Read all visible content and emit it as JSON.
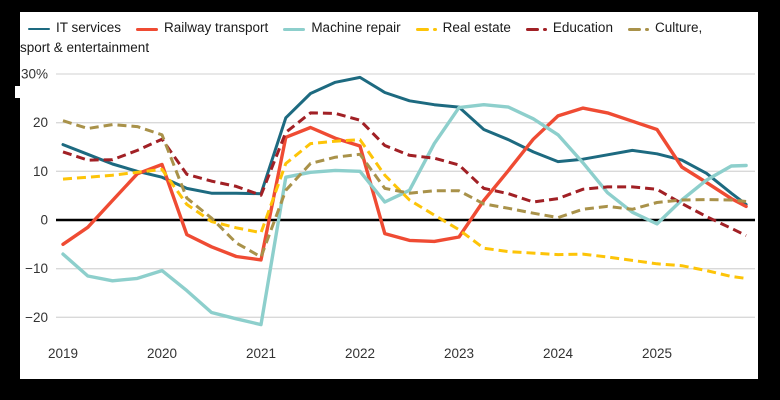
{
  "window": {
    "background": "#000000",
    "panel_background": "#ffffff"
  },
  "colors": {
    "grid": "#d9d9d9",
    "zero_line": "#000000",
    "axis_text": "#333333",
    "legend_text": "#1a1a1a"
  },
  "chart_data": {
    "type": "line",
    "title": "",
    "xlabel": "",
    "ylabel": "",
    "grid": true,
    "zero_line": true,
    "legend_position": "top",
    "x": [
      2019,
      2019.25,
      2019.5,
      2019.75,
      2020,
      2020.25,
      2020.5,
      2020.75,
      2021,
      2021.25,
      2021.5,
      2021.75,
      2022,
      2022.25,
      2022.5,
      2022.75,
      2023,
      2023.25,
      2023.5,
      2023.75,
      2024,
      2024.25,
      2024.5,
      2024.75,
      2025,
      2025.25,
      2025.5,
      2025.75,
      2025.9
    ],
    "x_axis": {
      "tick_values": [
        2019,
        2020,
        2021,
        2022,
        2023,
        2024,
        2025
      ],
      "tick_labels": [
        "2019",
        "2020",
        "2021",
        "2022",
        "2023",
        "2024",
        "2025"
      ]
    },
    "y_axis": {
      "tick_values": [
        30,
        20,
        10,
        0,
        -10,
        -20
      ],
      "tick_labels": [
        "30%",
        "20",
        "10",
        "0",
        "−10",
        "−20"
      ],
      "range": [
        -25,
        33
      ]
    },
    "series": [
      {
        "name": "IT services",
        "color": "#1d6a80",
        "dashed": false,
        "stroke_width": 3,
        "values": [
          15.5,
          13.5,
          11.5,
          10,
          8.8,
          6.5,
          5.5,
          5.5,
          5.4,
          21,
          26,
          28.3,
          29.3,
          26.2,
          24.5,
          23.7,
          23.2,
          18.6,
          16.5,
          14,
          12,
          12.5,
          13.4,
          14.3,
          13.6,
          12.3,
          9.6,
          5.5,
          3.2
        ]
      },
      {
        "name": "Railway transport",
        "color": "#ef4b33",
        "dashed": false,
        "stroke_width": 3.4,
        "values": [
          -5,
          -1.5,
          4,
          9.5,
          11.4,
          -3,
          -5.5,
          -7.5,
          -8.2,
          17,
          19,
          16.8,
          15.2,
          -2.8,
          -4.2,
          -4.4,
          -3.5,
          4,
          10.2,
          16.6,
          21.4,
          23,
          22,
          20.3,
          18.6,
          10.9,
          7.7,
          4.4,
          2.8
        ]
      },
      {
        "name": "Machine repair",
        "color": "#8dcfcc",
        "dashed": false,
        "stroke_width": 3.4,
        "values": [
          -7,
          -11.5,
          -12.5,
          -12,
          -10.4,
          -14.5,
          -19,
          -20.3,
          -21.5,
          8.8,
          9.8,
          10.2,
          10,
          3.7,
          6.1,
          15.7,
          23.1,
          23.7,
          23.2,
          20.8,
          17.5,
          11.8,
          5.6,
          1.6,
          -0.8,
          4.1,
          8.2,
          11.1,
          11.2
        ]
      },
      {
        "name": "Real estate",
        "color": "#fdc408",
        "dashed": true,
        "stroke_width": 3,
        "values": [
          8.4,
          8.8,
          9.2,
          9.8,
          10.4,
          3.2,
          -0.3,
          -1.6,
          -2.6,
          11.6,
          15.7,
          16.2,
          16.5,
          9.2,
          4.1,
          1.0,
          -2.0,
          -5.8,
          -6.5,
          -6.8,
          -7.1,
          -7.0,
          -7.6,
          -8.3,
          -9.0,
          -9.4,
          -10.4,
          -11.6,
          -12.0
        ]
      },
      {
        "name": "Education",
        "color": "#a12025",
        "dashed": true,
        "stroke_width": 3,
        "values": [
          14,
          12.3,
          12.4,
          14.3,
          16.6,
          9.4,
          8,
          6.9,
          5.1,
          18,
          22,
          21.9,
          20.5,
          15.3,
          13.3,
          12.7,
          11.3,
          6.5,
          5.4,
          3.7,
          4.4,
          6.3,
          6.8,
          6.8,
          6.3,
          3.4,
          0.7,
          -1.7,
          -3.2
        ]
      },
      {
        "name": "Culture, sport & entertainment",
        "color": "#a9924a",
        "dashed": true,
        "stroke_width": 3,
        "values": [
          20.4,
          18.8,
          19.6,
          19.2,
          17.5,
          4.5,
          0.4,
          -4.7,
          -7.6,
          6.1,
          11.6,
          12.9,
          13.5,
          6.5,
          5.5,
          6.0,
          6.0,
          3.3,
          2.4,
          1.4,
          0.5,
          2.2,
          2.8,
          2.2,
          3.6,
          4.1,
          4.2,
          4.1,
          3.8
        ]
      }
    ]
  }
}
